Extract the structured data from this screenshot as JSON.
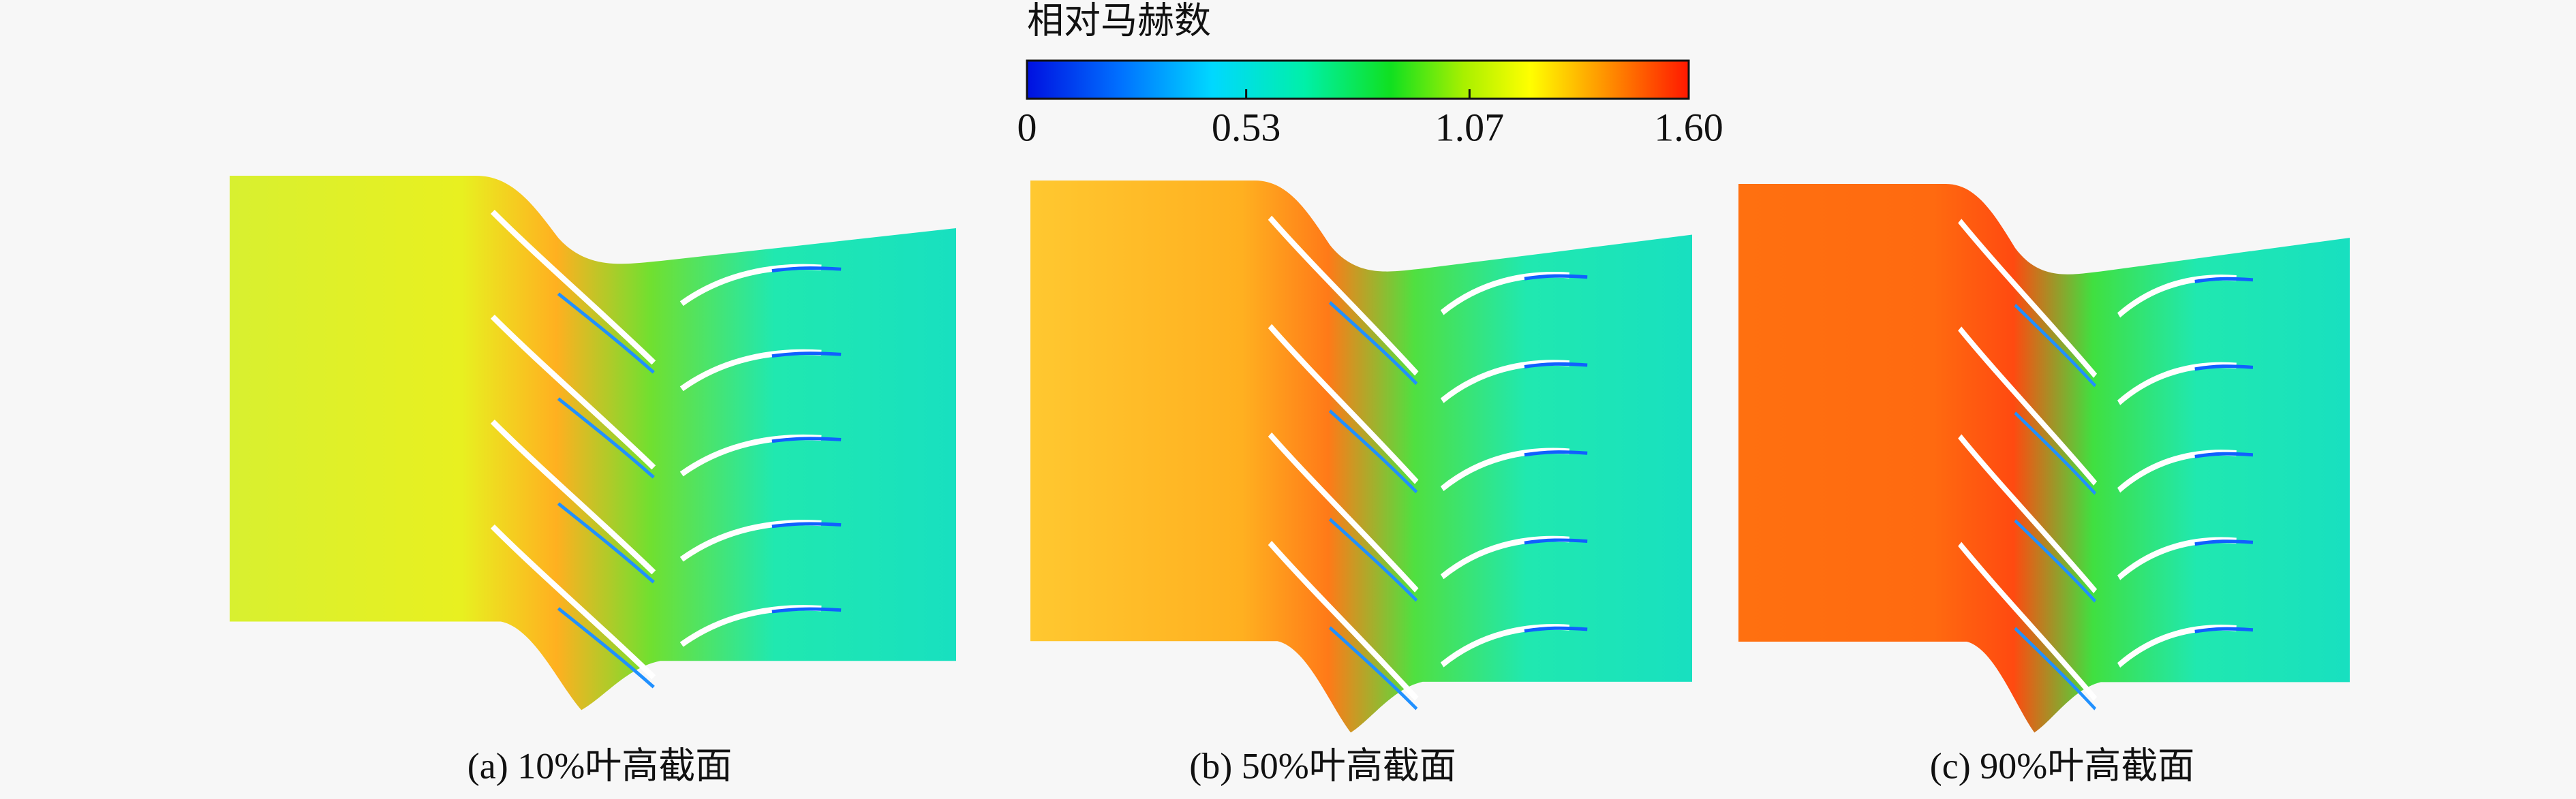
{
  "colorbar": {
    "title": "相对马赫数",
    "lim": [
      0,
      1.6
    ],
    "ticks": [
      0,
      0.53,
      1.07,
      {
        "value": 1.6,
        "label": "1.60"
      }
    ]
  },
  "panels": [
    {
      "caption": "(a) 10%叶高截面"
    },
    {
      "caption": "(b) 50%叶高截面"
    },
    {
      "caption": "(c) 90%叶高截面"
    }
  ]
}
